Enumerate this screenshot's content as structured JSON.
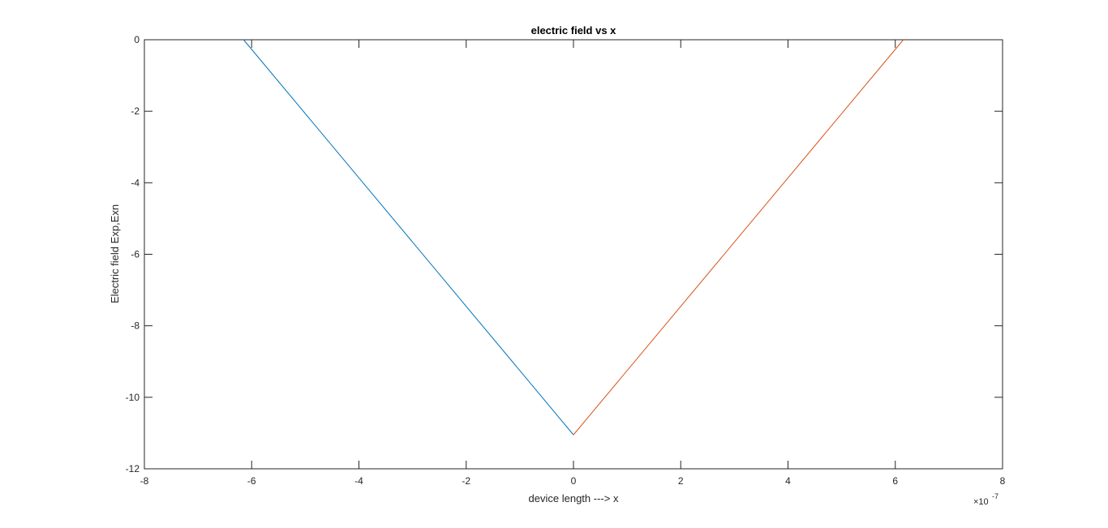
{
  "chart_data": {
    "type": "line",
    "title": "electric field vs x",
    "xlabel": "device length ---> x",
    "ylabel": "Electric field Exp,Exn",
    "x_multiplier": "×10",
    "x_exponent": "-7",
    "xlim": [
      -8,
      8
    ],
    "ylim": [
      -12,
      0
    ],
    "xticks": [
      -8,
      -6,
      -4,
      -2,
      0,
      2,
      4,
      6,
      8
    ],
    "yticks": [
      0,
      -2,
      -4,
      -6,
      -8,
      -10,
      -12
    ],
    "grid": false,
    "legend": "none",
    "series": [
      {
        "color": "#0072bd",
        "x": [
          -6.15,
          0
        ],
        "y": [
          0,
          -11.05
        ]
      },
      {
        "color": "#d95319",
        "x": [
          0,
          6.15
        ],
        "y": [
          -11.05,
          0
        ]
      }
    ]
  }
}
